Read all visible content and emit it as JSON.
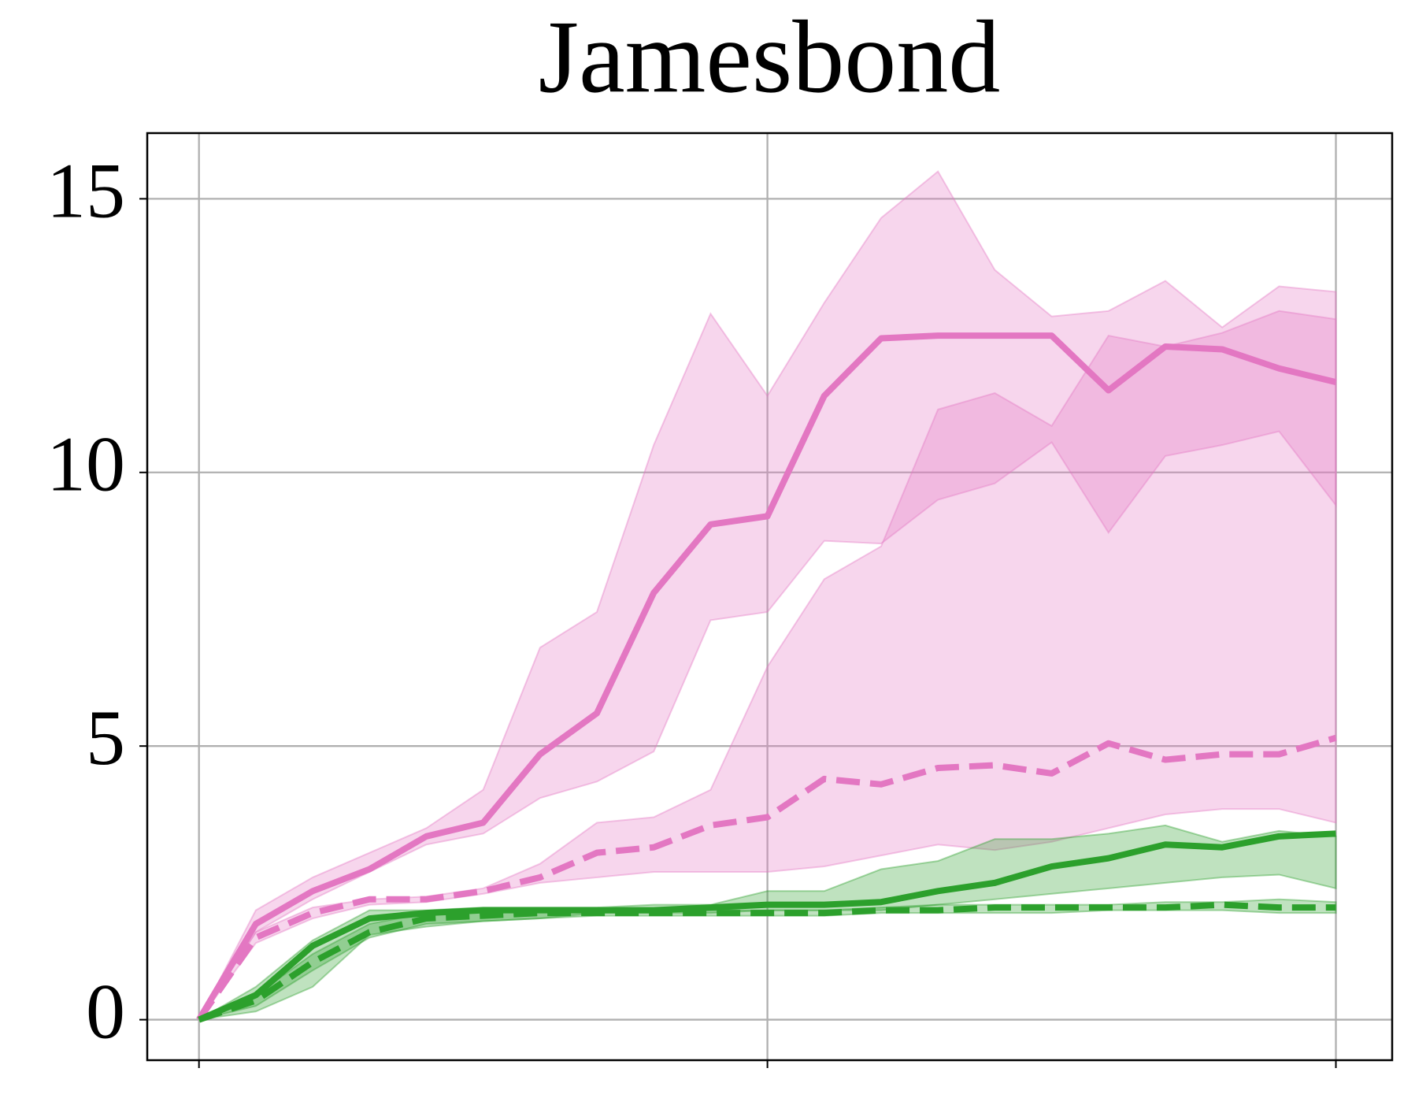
{
  "chart_data": {
    "type": "line",
    "title": "Jamesbond",
    "x": [
      0,
      1,
      2,
      3,
      4,
      5,
      6,
      7,
      8,
      9,
      10,
      11,
      12,
      13,
      14,
      15,
      16,
      17,
      18,
      19,
      20
    ],
    "xlim": [
      -0.91,
      20.99
    ],
    "xticks": [
      0,
      10,
      20
    ],
    "ylim": [
      -0.74,
      16.2
    ],
    "yticks": [
      0,
      5,
      10,
      15
    ],
    "grid": true,
    "series": [
      {
        "color": "#e377c2",
        "linestyle": "solid",
        "values": [
          0,
          1.75,
          2.35,
          2.75,
          3.35,
          3.6,
          4.85,
          5.6,
          7.8,
          9.05,
          9.2,
          11.4,
          12.45,
          12.5,
          12.5,
          12.5,
          11.5,
          12.3,
          12.25,
          11.9,
          11.65
        ],
        "upper": [
          0,
          2.0,
          2.6,
          3.05,
          3.5,
          4.2,
          6.8,
          7.45,
          10.5,
          12.9,
          11.4,
          13.1,
          14.65,
          15.5,
          13.7,
          12.85,
          12.95,
          13.5,
          12.65,
          13.4,
          13.3
        ],
        "lower": [
          0,
          1.6,
          2.2,
          2.7,
          3.2,
          3.4,
          4.05,
          4.35,
          4.9,
          7.3,
          7.45,
          8.75,
          8.7,
          9.5,
          9.8,
          10.55,
          8.9,
          10.3,
          10.5,
          10.75,
          9.4
        ]
      },
      {
        "color": "#e377c2",
        "linestyle": "dashed",
        "values": [
          0,
          1.5,
          1.95,
          2.2,
          2.2,
          2.35,
          2.6,
          3.05,
          3.15,
          3.55,
          3.7,
          4.4,
          4.3,
          4.6,
          4.65,
          4.5,
          5.05,
          4.75,
          4.85,
          4.85,
          5.15
        ],
        "upper": [
          0,
          1.6,
          2.05,
          2.2,
          2.25,
          2.4,
          2.85,
          3.6,
          3.7,
          4.2,
          6.45,
          8.05,
          8.65,
          11.15,
          11.45,
          10.85,
          12.5,
          12.3,
          12.55,
          12.95,
          12.8
        ],
        "lower": [
          0,
          1.4,
          1.85,
          2.1,
          2.15,
          2.3,
          2.5,
          2.6,
          2.7,
          2.7,
          2.7,
          2.8,
          3.0,
          3.2,
          3.1,
          3.25,
          3.5,
          3.75,
          3.85,
          3.85,
          3.6
        ]
      },
      {
        "color": "#2ca02c",
        "linestyle": "solid",
        "values": [
          0,
          0.45,
          1.35,
          1.85,
          1.95,
          2.0,
          2.0,
          2.0,
          2.0,
          2.05,
          2.1,
          2.1,
          2.15,
          2.35,
          2.5,
          2.8,
          2.95,
          3.2,
          3.15,
          3.35,
          3.4
        ],
        "upper": [
          0,
          0.6,
          1.45,
          2.0,
          2.0,
          2.05,
          2.05,
          2.05,
          2.1,
          2.1,
          2.35,
          2.35,
          2.75,
          2.9,
          3.3,
          3.3,
          3.4,
          3.55,
          3.25,
          3.45,
          3.35
        ],
        "lower": [
          0,
          0.15,
          0.6,
          1.55,
          1.7,
          1.8,
          1.85,
          1.95,
          1.95,
          1.95,
          2.0,
          2.0,
          2.0,
          2.1,
          2.2,
          2.3,
          2.4,
          2.5,
          2.6,
          2.65,
          2.4
        ]
      },
      {
        "color": "#2ca02c",
        "linestyle": "dashed",
        "values": [
          0,
          0.35,
          1.05,
          1.6,
          1.85,
          1.9,
          1.95,
          1.95,
          1.95,
          1.95,
          1.95,
          1.95,
          2.0,
          2.0,
          2.05,
          2.05,
          2.05,
          2.05,
          2.1,
          2.05,
          2.05
        ],
        "upper": [
          0,
          0.45,
          1.2,
          1.75,
          1.95,
          2.0,
          2.0,
          2.0,
          2.0,
          2.0,
          2.0,
          2.0,
          2.05,
          2.1,
          2.1,
          2.1,
          2.1,
          2.15,
          2.15,
          2.2,
          2.15
        ],
        "lower": [
          0,
          0.25,
          0.9,
          1.5,
          1.75,
          1.8,
          1.85,
          1.9,
          1.9,
          1.9,
          1.9,
          1.9,
          1.95,
          1.95,
          1.95,
          1.95,
          2.0,
          2.0,
          2.0,
          1.95,
          1.95
        ]
      }
    ]
  }
}
